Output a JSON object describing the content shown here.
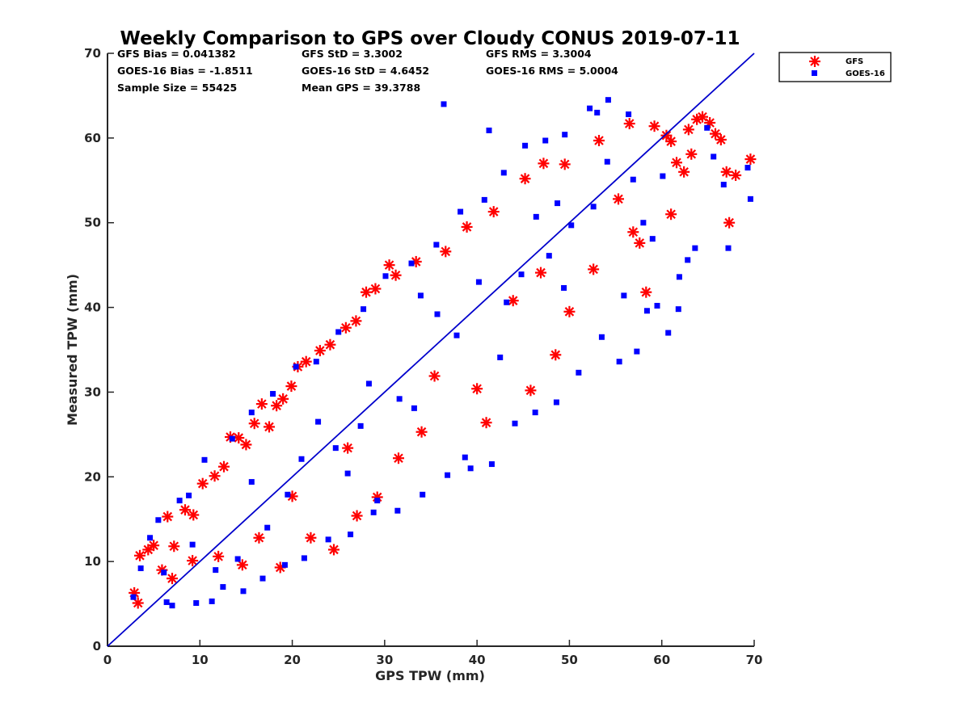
{
  "chart_data": {
    "type": "scatter",
    "title": "Weekly Comparison to GPS over Cloudy CONUS 2019-07-11",
    "xlabel": "GPS TPW (mm)",
    "ylabel": "Measured TPW (mm)",
    "xlim": [
      0,
      70
    ],
    "ylim": [
      0,
      70
    ],
    "xticks": [
      "0",
      "10",
      "20",
      "30",
      "40",
      "50",
      "60",
      "70"
    ],
    "yticks": [
      "0",
      "10",
      "20",
      "30",
      "40",
      "50",
      "60",
      "70"
    ],
    "grid": false,
    "legend_position": "outside-top-right",
    "reference_line": {
      "x": [
        0,
        70
      ],
      "y": [
        0,
        70
      ],
      "color": "#0000cc"
    },
    "stats": [
      [
        "GFS Bias = 0.041382",
        "GFS StD = 3.3002",
        "GFS RMS = 3.3004"
      ],
      [
        "GOES-16 Bias = -1.8511",
        "GOES-16 StD = 4.6452",
        "GOES-16 RMS = 5.0004"
      ],
      [
        "Sample Size = 55425",
        "Mean GPS = 39.3788",
        ""
      ]
    ],
    "series": [
      {
        "name": "GFS",
        "marker": "asterisk",
        "color": "#ff0000",
        "points": [
          [
            2.9,
            6.3
          ],
          [
            3.3,
            5.1
          ],
          [
            3.5,
            10.7
          ],
          [
            4.4,
            11.4
          ],
          [
            5.0,
            11.9
          ],
          [
            5.9,
            9.0
          ],
          [
            6.5,
            15.3
          ],
          [
            7.2,
            11.8
          ],
          [
            8.4,
            16.1
          ],
          [
            9.3,
            15.5
          ],
          [
            10.3,
            19.2
          ],
          [
            11.6,
            20.1
          ],
          [
            12.6,
            21.2
          ],
          [
            13.3,
            24.7
          ],
          [
            14.2,
            24.6
          ],
          [
            15.0,
            23.8
          ],
          [
            15.9,
            26.3
          ],
          [
            16.7,
            28.6
          ],
          [
            17.5,
            25.9
          ],
          [
            18.3,
            28.4
          ],
          [
            19.0,
            29.2
          ],
          [
            19.9,
            30.7
          ],
          [
            20.6,
            33.0
          ],
          [
            21.5,
            33.6
          ],
          [
            23.0,
            34.9
          ],
          [
            24.1,
            35.6
          ],
          [
            25.8,
            37.6
          ],
          [
            26.9,
            38.4
          ],
          [
            28.0,
            41.8
          ],
          [
            29.0,
            42.2
          ],
          [
            30.5,
            45.0
          ],
          [
            31.2,
            43.8
          ],
          [
            33.4,
            45.4
          ],
          [
            36.6,
            46.6
          ],
          [
            38.9,
            49.5
          ],
          [
            41.8,
            51.3
          ],
          [
            45.2,
            55.2
          ],
          [
            47.2,
            57.0
          ],
          [
            49.5,
            56.9
          ],
          [
            53.2,
            59.7
          ],
          [
            56.5,
            61.7
          ],
          [
            59.2,
            61.4
          ],
          [
            61.0,
            59.6
          ],
          [
            61.6,
            57.1
          ],
          [
            62.4,
            56.0
          ],
          [
            63.2,
            58.1
          ],
          [
            64.4,
            62.5
          ],
          [
            65.2,
            61.8
          ],
          [
            65.8,
            60.5
          ],
          [
            66.4,
            59.8
          ],
          [
            67.0,
            56.0
          ],
          [
            67.3,
            50.0
          ],
          [
            68.0,
            55.6
          ],
          [
            69.6,
            57.5
          ],
          [
            61.0,
            51.0
          ],
          [
            58.3,
            41.8
          ],
          [
            57.6,
            47.6
          ],
          [
            56.9,
            48.9
          ],
          [
            50.0,
            39.5
          ],
          [
            48.5,
            34.4
          ],
          [
            45.8,
            30.2
          ],
          [
            40.0,
            30.4
          ],
          [
            34.0,
            25.3
          ],
          [
            31.5,
            22.2
          ],
          [
            29.2,
            17.6
          ],
          [
            27.0,
            15.4
          ],
          [
            24.5,
            11.4
          ],
          [
            22.0,
            12.8
          ],
          [
            18.7,
            9.3
          ],
          [
            14.6,
            9.6
          ],
          [
            12.0,
            10.6
          ],
          [
            9.2,
            10.1
          ],
          [
            7.0,
            8.0
          ],
          [
            41.0,
            26.4
          ],
          [
            52.6,
            44.5
          ],
          [
            55.3,
            52.8
          ],
          [
            60.5,
            60.3
          ],
          [
            62.9,
            61.0
          ],
          [
            63.8,
            62.2
          ],
          [
            35.4,
            31.9
          ],
          [
            43.9,
            40.8
          ],
          [
            26.0,
            23.4
          ],
          [
            20.0,
            17.7
          ],
          [
            16.4,
            12.8
          ],
          [
            46.9,
            44.1
          ]
        ]
      },
      {
        "name": "GOES-16",
        "marker": "square",
        "color": "#0000ff",
        "points": [
          [
            2.8,
            5.8
          ],
          [
            3.6,
            9.2
          ],
          [
            4.6,
            12.8
          ],
          [
            5.5,
            14.9
          ],
          [
            6.4,
            5.2
          ],
          [
            7.0,
            4.8
          ],
          [
            7.8,
            17.2
          ],
          [
            8.8,
            17.8
          ],
          [
            9.6,
            5.1
          ],
          [
            10.5,
            22.0
          ],
          [
            11.3,
            5.3
          ],
          [
            12.5,
            7.0
          ],
          [
            13.5,
            24.5
          ],
          [
            14.7,
            6.5
          ],
          [
            15.6,
            27.6
          ],
          [
            16.8,
            8.0
          ],
          [
            17.9,
            29.8
          ],
          [
            19.2,
            9.6
          ],
          [
            20.4,
            33.0
          ],
          [
            21.3,
            10.4
          ],
          [
            22.6,
            33.6
          ],
          [
            23.9,
            12.6
          ],
          [
            25.0,
            37.1
          ],
          [
            26.3,
            13.2
          ],
          [
            27.7,
            39.8
          ],
          [
            28.8,
            15.8
          ],
          [
            30.1,
            43.7
          ],
          [
            31.4,
            16.0
          ],
          [
            32.9,
            45.2
          ],
          [
            34.1,
            17.9
          ],
          [
            35.6,
            47.4
          ],
          [
            36.8,
            20.2
          ],
          [
            38.2,
            51.3
          ],
          [
            39.3,
            21.0
          ],
          [
            40.8,
            52.7
          ],
          [
            41.6,
            21.5
          ],
          [
            42.9,
            55.9
          ],
          [
            44.1,
            26.3
          ],
          [
            45.2,
            59.1
          ],
          [
            46.3,
            27.6
          ],
          [
            47.4,
            59.7
          ],
          [
            48.6,
            28.8
          ],
          [
            49.5,
            60.4
          ],
          [
            51.0,
            32.3
          ],
          [
            52.2,
            63.5
          ],
          [
            53.0,
            63.0
          ],
          [
            54.2,
            64.5
          ],
          [
            55.4,
            33.6
          ],
          [
            56.4,
            62.8
          ],
          [
            57.3,
            34.8
          ],
          [
            58.4,
            39.6
          ],
          [
            59.5,
            40.2
          ],
          [
            60.7,
            37.0
          ],
          [
            61.8,
            39.8
          ],
          [
            62.8,
            45.6
          ],
          [
            63.6,
            47.0
          ],
          [
            64.9,
            61.2
          ],
          [
            65.6,
            57.8
          ],
          [
            66.7,
            54.5
          ],
          [
            67.2,
            47.0
          ],
          [
            69.6,
            52.8
          ],
          [
            69.3,
            56.5
          ],
          [
            36.4,
            64.0
          ],
          [
            41.3,
            60.9
          ],
          [
            29.2,
            17.2
          ],
          [
            33.9,
            41.4
          ],
          [
            44.8,
            43.9
          ],
          [
            50.2,
            49.7
          ],
          [
            14.1,
            10.3
          ],
          [
            19.5,
            17.9
          ],
          [
            24.7,
            23.4
          ],
          [
            31.6,
            29.2
          ],
          [
            37.8,
            36.7
          ],
          [
            43.2,
            40.6
          ],
          [
            47.8,
            46.1
          ],
          [
            52.6,
            51.9
          ],
          [
            56.9,
            55.1
          ],
          [
            9.2,
            12.0
          ],
          [
            6.1,
            8.7
          ],
          [
            22.8,
            26.5
          ],
          [
            28.3,
            31.0
          ],
          [
            35.7,
            39.2
          ],
          [
            40.2,
            43.0
          ],
          [
            46.4,
            50.7
          ],
          [
            54.1,
            57.2
          ],
          [
            60.1,
            55.5
          ],
          [
            11.7,
            9.0
          ],
          [
            17.3,
            14.0
          ],
          [
            26.0,
            20.4
          ],
          [
            33.2,
            28.1
          ],
          [
            42.5,
            34.1
          ],
          [
            49.4,
            42.3
          ],
          [
            58.0,
            50.0
          ],
          [
            61.9,
            43.6
          ],
          [
            59.0,
            48.1
          ],
          [
            55.9,
            41.4
          ],
          [
            53.5,
            36.5
          ],
          [
            38.7,
            22.3
          ],
          [
            27.4,
            26.0
          ],
          [
            21.0,
            22.1
          ],
          [
            15.6,
            19.4
          ],
          [
            48.7,
            52.3
          ]
        ]
      }
    ]
  }
}
